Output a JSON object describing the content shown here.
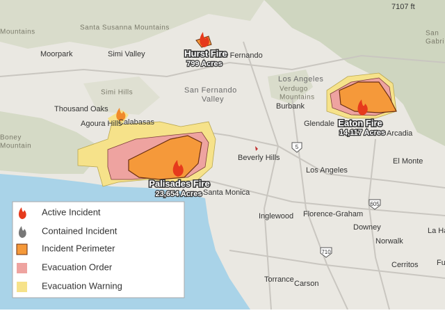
{
  "fires": [
    {
      "name": "Hurst Fire",
      "acres": "799 Acres"
    },
    {
      "name": "Eaton Fire",
      "acres": "14,117 Acres"
    },
    {
      "name": "Palisades Fire",
      "acres": "23,654 Acres"
    }
  ],
  "places": [
    "Santa Susanna Mountains",
    "Mountains",
    "Moorpark",
    "Simi Valley",
    "Simi Hills",
    "Thousand Oaks",
    "Agoura Hills",
    "Calabasas",
    "Boney",
    "Mountain",
    "San Fernando",
    "San Fernando",
    "Valley",
    "Los Angeles",
    "Verdugo",
    "Mountains",
    "Burbank",
    "Glendale",
    "Beverly Hills",
    "Los Angeles",
    "Santa Monica",
    "El Monte",
    "Arcadia",
    "Inglewood",
    "Florence-Graham",
    "Downey",
    "Norwalk",
    "Cerritos",
    "Torrance",
    "Carson",
    "La Habra",
    "San",
    "Gabri",
    "Fu",
    "7107 ft"
  ],
  "highways": [
    "5",
    "605",
    "710"
  ],
  "legend": [
    "Active Incident",
    "Contained Incident",
    "Incident Perimeter",
    "Evacuation Order",
    "Evacuation Warning"
  ]
}
